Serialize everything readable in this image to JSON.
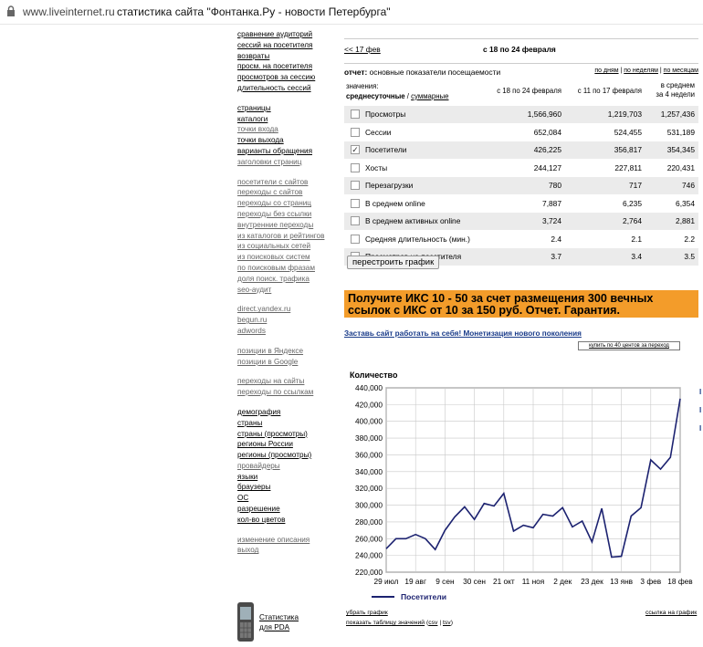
{
  "browser": {
    "host": "www.liveinternet.ru",
    "title": "статистика сайта \"Фонтанка.Ру - новости Петербурга\""
  },
  "nav_groups": [
    [
      {
        "label": "сравнение аудиторий",
        "dim": false
      },
      {
        "label": "сессий на посетителя",
        "dim": false
      },
      {
        "label": "возвраты",
        "dim": false
      },
      {
        "label": "просм. на посетителя",
        "dim": false
      },
      {
        "label": "просмотров за сессию",
        "dim": false
      },
      {
        "label": "длительность сессий",
        "dim": false
      }
    ],
    [
      {
        "label": "страницы",
        "dim": false
      },
      {
        "label": "каталоги",
        "dim": false
      },
      {
        "label": "точки входа",
        "dim": true
      },
      {
        "label": "точки выхода",
        "dim": false
      },
      {
        "label": "варианты обращения",
        "dim": false
      },
      {
        "label": "заголовки страниц",
        "dim": true
      }
    ],
    [
      {
        "label": "посетители с сайтов",
        "dim": true
      },
      {
        "label": "переходы с сайтов",
        "dim": true
      },
      {
        "label": "переходы со страниц",
        "dim": true
      },
      {
        "label": "переходы без ссылки",
        "dim": true
      },
      {
        "label": "внутренние переходы",
        "dim": true
      },
      {
        "label": "из каталогов и рейтингов",
        "dim": true
      },
      {
        "label": "из социальных сетей",
        "dim": true
      },
      {
        "label": "из поисковых систем",
        "dim": true
      },
      {
        "label": "по поисковым фразам",
        "dim": true
      },
      {
        "label": "доля поиск. трафика",
        "dim": true
      },
      {
        "label": "seo-аудит",
        "dim": true
      }
    ],
    [
      {
        "label": "direct.yandex.ru",
        "dim": true
      },
      {
        "label": "begun.ru",
        "dim": true
      },
      {
        "label": "adwords",
        "dim": true
      }
    ],
    [
      {
        "label": "позиции в Яндексе",
        "dim": true
      },
      {
        "label": "позиции в Google",
        "dim": true
      }
    ],
    [
      {
        "label": "переходы на сайты",
        "dim": true
      },
      {
        "label": "переходы по ссылкам",
        "dim": true
      }
    ],
    [
      {
        "label": "демография",
        "dim": false
      },
      {
        "label": "страны",
        "dim": false
      },
      {
        "label": "страны (просмотры)",
        "dim": false
      },
      {
        "label": "регионы России",
        "dim": false
      },
      {
        "label": "регионы (просмотры)",
        "dim": false
      },
      {
        "label": "провайдеры",
        "dim": true
      },
      {
        "label": "языки",
        "dim": false
      },
      {
        "label": "браузеры",
        "dim": false
      },
      {
        "label": "ОС",
        "dim": false
      },
      {
        "label": "разрешение",
        "dim": false
      },
      {
        "label": "кол-во цветов",
        "dim": false
      }
    ],
    [
      {
        "label": "изменение описания",
        "dim": true
      },
      {
        "label": "выход",
        "dim": true
      }
    ]
  ],
  "pda": {
    "line1": "Статистика",
    "line2": "для PDA"
  },
  "period": {
    "prev": "<< 17 фев",
    "current": "с 18 по 24 февраля"
  },
  "report": {
    "label_bold": "отчет:",
    "label": " основные показатели посещаемости",
    "by_day": "по дням",
    "by_week": "по неделям",
    "by_month": "по месяцам",
    "sep": " | "
  },
  "table": {
    "values_label": "значения:",
    "daily": "среднесуточные",
    "slash": " / ",
    "total": "суммарные",
    "col_a": "с 18 по 24 февраля",
    "col_b": "с 11 по 17 февраля",
    "col_c_1": "в среднем",
    "col_c_2": "за 4 недели",
    "rows": [
      {
        "name": "Просмотры",
        "a": "1,566,960",
        "b": "1,219,703",
        "c": "1,257,436",
        "checked": false
      },
      {
        "name": "Сессии",
        "a": "652,084",
        "b": "524,455",
        "c": "531,189",
        "checked": false
      },
      {
        "name": "Посетители",
        "a": "426,225",
        "b": "356,817",
        "c": "354,345",
        "checked": true
      },
      {
        "name": "Хосты",
        "a": "244,127",
        "b": "227,811",
        "c": "220,431",
        "checked": false
      },
      {
        "name": "Перезагрузки",
        "a": "780",
        "b": "717",
        "c": "746",
        "checked": false
      },
      {
        "name": "В среднем online",
        "a": "7,887",
        "b": "6,235",
        "c": "6,354",
        "checked": false
      },
      {
        "name": "В среднем активных online",
        "a": "3,724",
        "b": "2,764",
        "c": "2,881",
        "checked": false
      },
      {
        "name": "Средняя длительность (мин.)",
        "a": "2.4",
        "b": "2.1",
        "c": "2.2",
        "checked": false
      },
      {
        "name": "Просмотров на посетителя",
        "a": "3.7",
        "b": "3.4",
        "c": "3.5",
        "checked": false
      }
    ]
  },
  "rebuild_button": "перестроить график",
  "ad": {
    "line1": "Получите ИКС 10 - 50 за счет размещения 300 вечных",
    "line2": "ссылок с ИКС от 10 за 150 руб. Отчет. Гарантия."
  },
  "monetize_link": "Заставь сайт работать на себя! Монетизация нового поколения",
  "buy_link": "купить по 40 центов за переход",
  "chart_data": {
    "type": "line",
    "ylabel": "Количество",
    "ylim": [
      220000,
      440000
    ],
    "yticks": [
      "220,000",
      "240,000",
      "260,000",
      "280,000",
      "300,000",
      "320,000",
      "340,000",
      "360,000",
      "380,000",
      "400,000",
      "420,000",
      "440,000"
    ],
    "xtick_labels": [
      "29 июл",
      "19 авг",
      "9 сен",
      "30 сен",
      "21 окт",
      "11 ноя",
      "2 дек",
      "23 дек",
      "13 янв",
      "3 фев",
      "18 фев"
    ],
    "grid": true,
    "legend_position": "bottom",
    "series": [
      {
        "name": "Посетители",
        "color": "#1c2270",
        "values": [
          248000,
          260000,
          260000,
          265000,
          260000,
          247000,
          270000,
          286000,
          298000,
          283000,
          302000,
          299000,
          314000,
          269000,
          276000,
          273000,
          289000,
          287000,
          297000,
          274000,
          281000,
          256000,
          296000,
          238000,
          239000,
          287000,
          297000,
          354000,
          343000,
          357000,
          427000
        ]
      }
    ]
  },
  "footer": {
    "hide_chart": "убрать график",
    "chart_link": "ссылка на график",
    "show_table": "показать таблицу значений",
    "csv": "csv",
    "tsv": "tsv",
    "paren_open": " (",
    "bar": " | ",
    "paren_close": ")"
  },
  "edge_marks": [
    "I",
    "I",
    "I"
  ]
}
